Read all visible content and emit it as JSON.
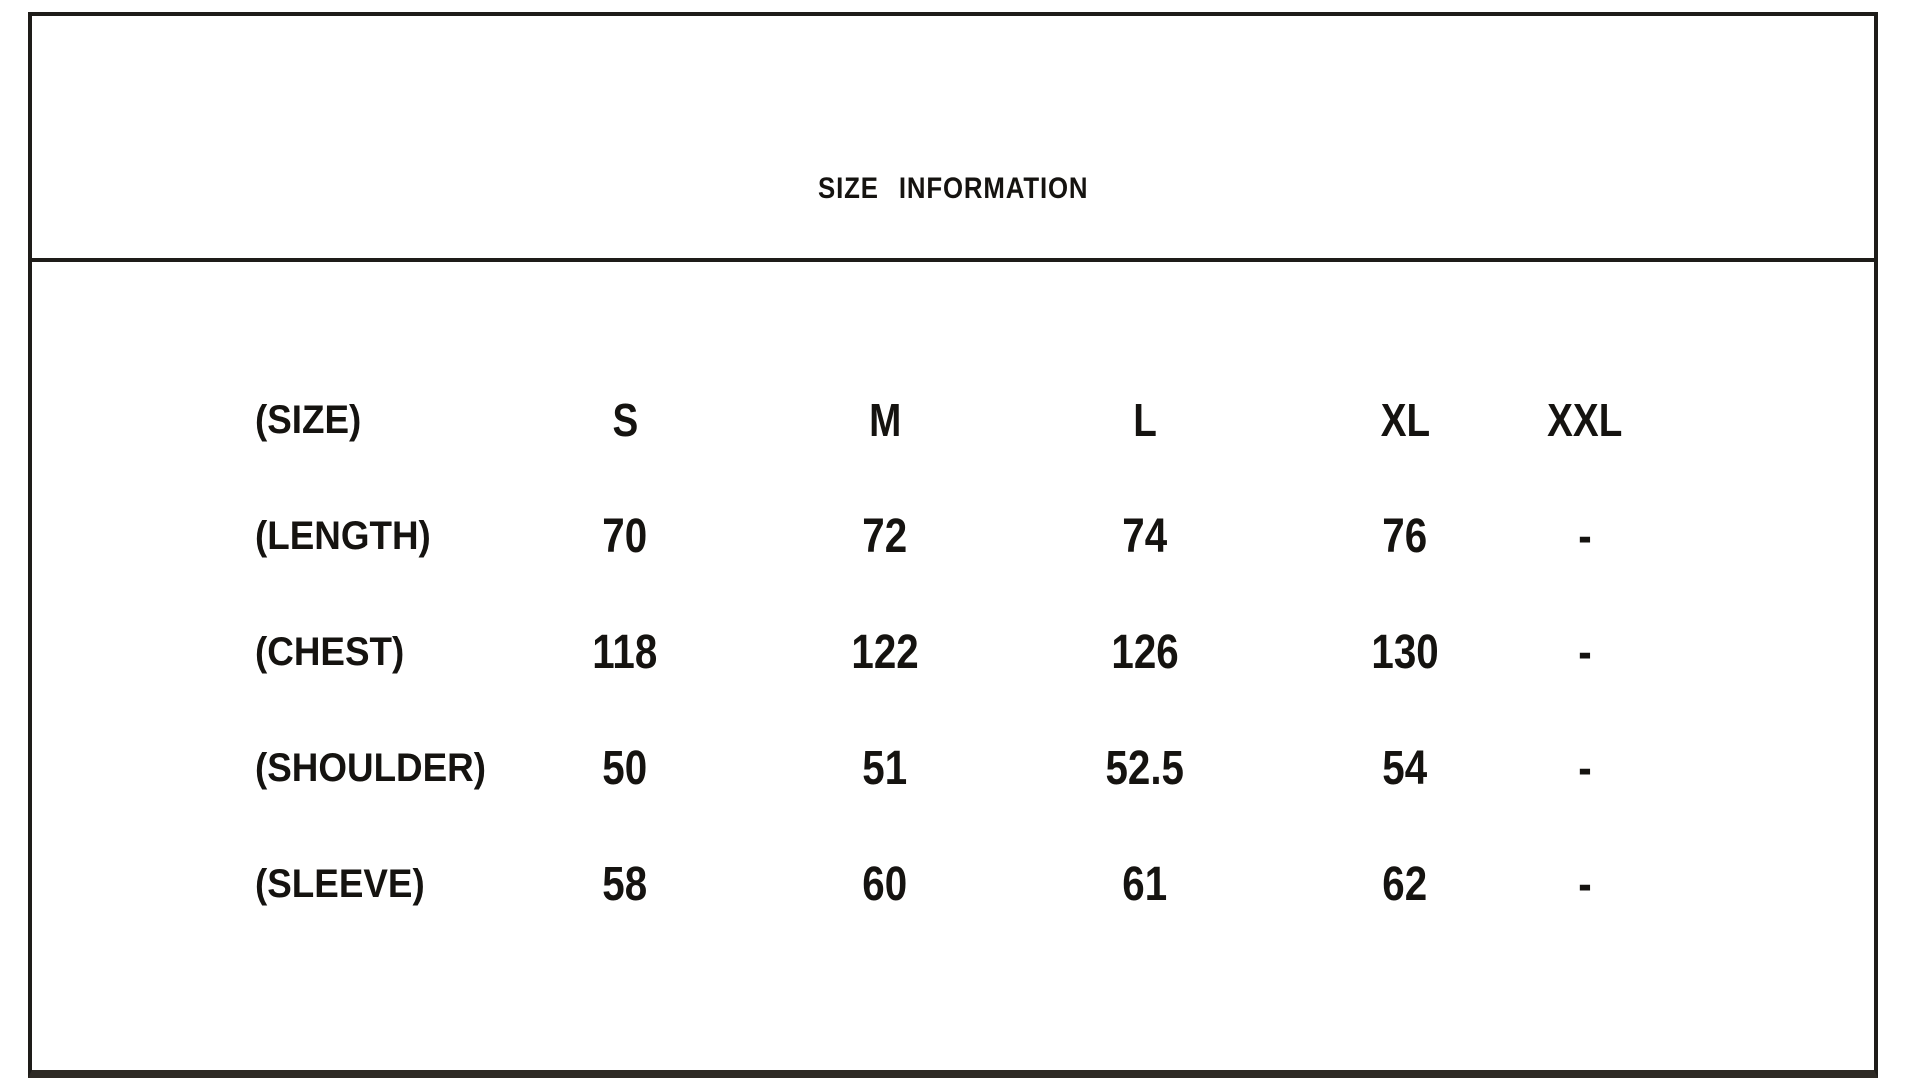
{
  "title": "SIZE INFORMATION",
  "table": {
    "header": {
      "label": "(SIZE)",
      "columns": [
        "S",
        "M",
        "L",
        "XL",
        "XXL"
      ]
    },
    "rows": [
      {
        "label": "(LENGTH)",
        "values": [
          "70",
          "72",
          "74",
          "76",
          "-"
        ]
      },
      {
        "label": "(CHEST)",
        "values": [
          "118",
          "122",
          "126",
          "130",
          "-"
        ]
      },
      {
        "label": "(SHOULDER)",
        "values": [
          "50",
          "51",
          "52.5",
          "54",
          "-"
        ]
      },
      {
        "label": "(SLEEVE)",
        "values": [
          "58",
          "60",
          "61",
          "62",
          "-"
        ]
      }
    ]
  },
  "colors": {
    "background": "#ffffff",
    "text": "#151310",
    "border": "#1e1c19"
  }
}
